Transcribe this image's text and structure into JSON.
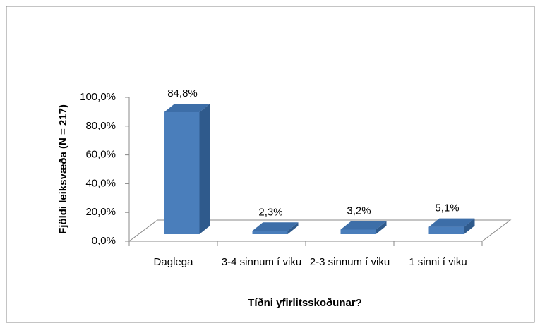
{
  "chart_data": {
    "type": "bar3d",
    "categories": [
      "Daglega",
      "3-4 sinnum í viku",
      "2-3 sinnum í viku",
      "1 sinni í viku"
    ],
    "values": [
      84.8,
      2.3,
      3.2,
      5.1
    ],
    "value_labels": [
      "84,8%",
      "2,3%",
      "3,2%",
      "5,1%"
    ],
    "color": "#4a7ebb",
    "ylim": [
      0,
      100
    ],
    "yticks": [
      {
        "value": 0,
        "label": "0,0%"
      },
      {
        "value": 20,
        "label": "20,0%"
      },
      {
        "value": 40,
        "label": "40,0%"
      },
      {
        "value": 60,
        "label": "60,0%"
      },
      {
        "value": 80,
        "label": "80,0%"
      },
      {
        "value": 100,
        "label": "100,0%"
      }
    ],
    "ylabel": "Fjöldi leiksvæða (N = 217)",
    "xlabel": "Tíðni yfirlitsskoðunar?"
  }
}
